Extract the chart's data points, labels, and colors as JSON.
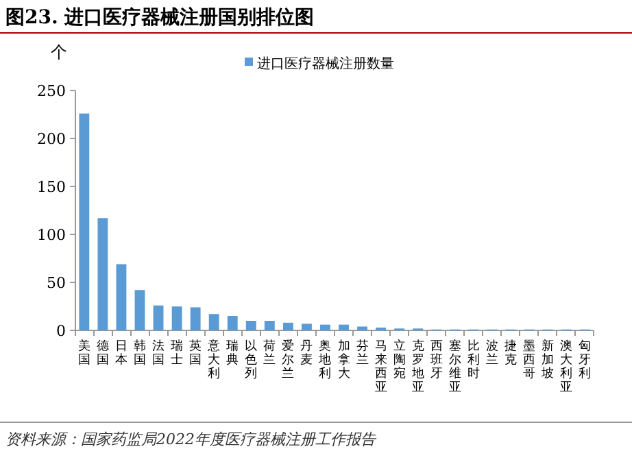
{
  "chart_data": {
    "type": "bar",
    "title": "图23. 进口医疗器械注册国别排位图",
    "ylabel": "个",
    "categories": [
      "美国",
      "德国",
      "日本",
      "韩国",
      "法国",
      "瑞士",
      "英国",
      "意大利",
      "瑞典",
      "以色列",
      "荷兰",
      "爱尔兰",
      "丹麦",
      "奥地利",
      "加拿大",
      "芬兰",
      "马来西亚",
      "立陶宛",
      "克罗地亚",
      "西班牙",
      "塞尔维亚",
      "比利时",
      "波兰",
      "捷克",
      "墨西哥",
      "新加坡",
      "澳大利亚",
      "匈牙利"
    ],
    "series": [
      {
        "name": "进口医疗器械注册数量",
        "color": "#5b9bd5",
        "values": [
          226,
          117,
          69,
          42,
          26,
          25,
          24,
          17,
          15,
          10,
          10,
          8,
          7,
          6,
          6,
          4,
          3,
          2,
          2,
          1,
          1,
          1,
          1,
          1,
          1,
          1,
          1,
          1
        ]
      }
    ],
    "ylim": [
      0,
      250
    ],
    "yticks": [
      0,
      50,
      100,
      150,
      200,
      250
    ],
    "grid": false,
    "legend": "top",
    "annotations": [
      "资料来源：国家药监局2022年度医疗器械注册工作报告"
    ]
  }
}
